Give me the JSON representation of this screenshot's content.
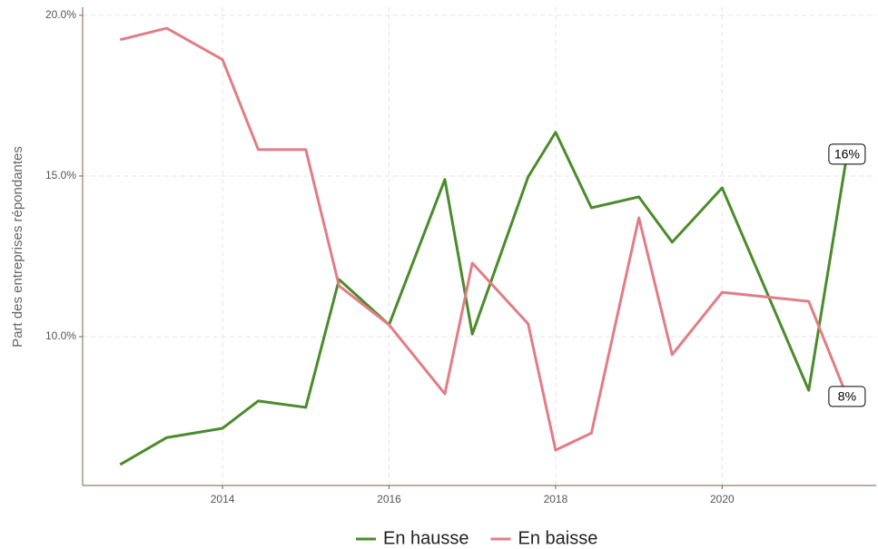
{
  "chart_data": {
    "type": "line",
    "y_label": "Part des entreprises répondantes",
    "x": [
      2012.77,
      2013.33,
      2014.0,
      2014.43,
      2015.0,
      2015.4,
      2016.0,
      2016.67,
      2017.0,
      2017.67,
      2018.0,
      2018.43,
      2019.0,
      2019.4,
      2020.0,
      2021.04,
      2021.5
    ],
    "series": [
      {
        "name": "En hausse",
        "color": "#4b8b2c",
        "values": [
          6.02,
          6.86,
          7.15,
          8.0,
          7.8,
          11.78,
          10.37,
          14.89,
          10.08,
          14.97,
          16.36,
          14.01,
          14.35,
          12.94,
          14.63,
          8.33,
          15.68
        ],
        "value_labels": [
          null,
          null,
          null,
          null,
          null,
          null,
          null,
          null,
          null,
          null,
          null,
          null,
          null,
          null,
          null,
          null,
          "16%"
        ]
      },
      {
        "name": "En baisse",
        "color": "#e17d86",
        "values": [
          19.24,
          19.6,
          18.62,
          15.82,
          15.82,
          11.58,
          10.37,
          8.22,
          12.29,
          10.4,
          6.47,
          7.0,
          13.7,
          9.44,
          11.38,
          11.1,
          8.14
        ],
        "value_labels": [
          null,
          null,
          null,
          null,
          null,
          null,
          null,
          null,
          null,
          null,
          null,
          null,
          null,
          null,
          null,
          null,
          "8%"
        ]
      }
    ],
    "xlim": [
      2012.32,
      2021.85
    ],
    "xticks": [
      2014,
      2016,
      2018,
      2020
    ],
    "ylim": [
      5.37,
      20.25
    ],
    "yticks": [
      {
        "value": 10,
        "label": "10.0%"
      },
      {
        "value": 15,
        "label": "15.0%"
      },
      {
        "value": 20,
        "label": "20.0%"
      }
    ],
    "grid": true,
    "legend": "bottom"
  }
}
